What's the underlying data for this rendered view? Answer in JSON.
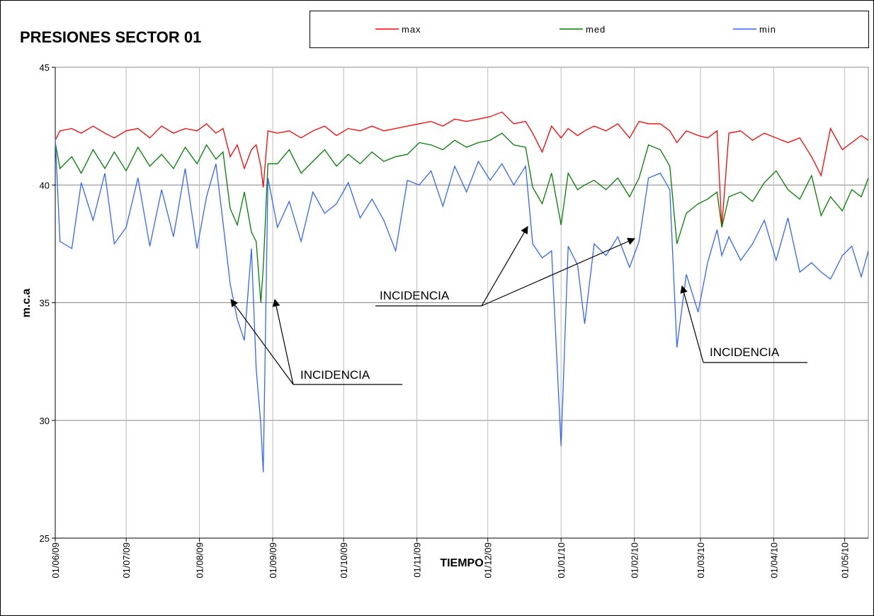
{
  "chart_data": {
    "type": "line",
    "title": "PRESIONES SECTOR 01",
    "x_label": "TIEMPO",
    "y_label": "m.c.a",
    "x": [
      "01/06/09",
      "03/06/09",
      "08/06/09",
      "12/06/09",
      "17/06/09",
      "22/06/09",
      "26/06/09",
      "01/07/09",
      "06/07/09",
      "11/07/09",
      "16/07/09",
      "21/07/09",
      "26/07/09",
      "31/07/09",
      "04/08/09",
      "08/08/09",
      "11/08/09",
      "14/08/09",
      "17/08/09",
      "20/08/09",
      "23/08/09",
      "25/08/09",
      "27/08/09",
      "28/08/09",
      "30/08/09",
      "03/09/09",
      "08/09/09",
      "13/09/09",
      "18/09/09",
      "23/09/09",
      "28/09/09",
      "03/10/09",
      "08/10/09",
      "13/10/09",
      "18/10/09",
      "23/10/09",
      "28/10/09",
      "02/11/09",
      "07/11/09",
      "12/11/09",
      "17/11/09",
      "22/11/09",
      "27/11/09",
      "02/12/09",
      "07/12/09",
      "12/12/09",
      "17/12/09",
      "20/12/09",
      "24/12/09",
      "28/12/09",
      "01/01/10",
      "04/01/10",
      "08/01/10",
      "11/01/10",
      "15/01/10",
      "20/01/10",
      "25/01/10",
      "30/01/10",
      "03/02/10",
      "07/02/10",
      "12/02/10",
      "16/02/10",
      "19/02/10",
      "23/02/10",
      "28/02/10",
      "04/03/10",
      "08/03/10",
      "10/03/10",
      "13/03/10",
      "18/03/10",
      "23/03/10",
      "28/03/10",
      "02/04/10",
      "07/04/10",
      "12/04/10",
      "17/04/10",
      "21/04/10",
      "25/04/10",
      "30/04/10",
      "04/05/10",
      "08/05/10",
      "11/05/10"
    ],
    "series": [
      {
        "name": "max",
        "color": "#ff0000",
        "values": [
          41.9,
          42.3,
          42.4,
          42.2,
          42.5,
          42.2,
          42.0,
          42.3,
          42.4,
          42.0,
          42.5,
          42.2,
          42.4,
          42.3,
          42.6,
          42.2,
          42.4,
          41.2,
          41.7,
          40.7,
          41.5,
          41.7,
          40.8,
          39.9,
          42.3,
          42.2,
          42.3,
          42.0,
          42.3,
          42.5,
          42.1,
          42.4,
          42.3,
          42.5,
          42.3,
          42.4,
          42.5,
          42.6,
          42.7,
          42.5,
          42.8,
          42.7,
          42.8,
          42.9,
          43.1,
          42.6,
          42.7,
          42.2,
          41.4,
          42.5,
          42.0,
          42.4,
          42.1,
          42.3,
          42.5,
          42.3,
          42.6,
          42.0,
          42.7,
          42.6,
          42.6,
          42.3,
          41.8,
          42.3,
          42.1,
          42.0,
          42.3,
          38.2,
          42.2,
          42.3,
          41.9,
          42.2,
          42.0,
          41.8,
          42.0,
          41.2,
          40.4,
          42.4,
          41.5,
          41.8,
          42.1,
          41.9
        ]
      },
      {
        "name": "med",
        "color": "#008000",
        "values": [
          41.8,
          40.7,
          41.2,
          40.5,
          41.5,
          40.7,
          41.4,
          40.6,
          41.6,
          40.8,
          41.3,
          40.7,
          41.6,
          40.9,
          41.7,
          41.1,
          41.4,
          39.0,
          38.3,
          39.7,
          38.0,
          37.6,
          35.0,
          36.5,
          40.9,
          40.9,
          41.5,
          40.5,
          41.0,
          41.5,
          40.8,
          41.3,
          40.9,
          41.4,
          41.0,
          41.2,
          41.3,
          41.8,
          41.7,
          41.5,
          41.9,
          41.6,
          41.8,
          41.9,
          42.2,
          41.7,
          41.6,
          39.9,
          39.2,
          40.5,
          38.3,
          40.5,
          39.8,
          40.0,
          40.2,
          39.8,
          40.3,
          39.5,
          40.3,
          41.7,
          41.5,
          40.8,
          37.5,
          38.8,
          39.2,
          39.4,
          39.7,
          38.2,
          39.5,
          39.7,
          39.3,
          40.1,
          40.6,
          39.8,
          39.4,
          40.4,
          38.7,
          39.5,
          38.9,
          39.8,
          39.5,
          40.3
        ]
      },
      {
        "name": "min",
        "color": "#3366ff",
        "values": [
          42.0,
          37.6,
          37.3,
          40.1,
          38.5,
          40.5,
          37.5,
          38.2,
          40.3,
          37.4,
          39.8,
          37.8,
          40.7,
          37.3,
          39.5,
          40.9,
          38.4,
          35.8,
          34.3,
          33.4,
          37.3,
          32.2,
          29.8,
          27.8,
          40.3,
          38.2,
          39.3,
          37.6,
          39.7,
          38.8,
          39.2,
          40.1,
          38.6,
          39.4,
          38.5,
          37.2,
          40.2,
          40.0,
          40.6,
          39.1,
          40.8,
          39.7,
          41.0,
          40.2,
          40.9,
          40.0,
          40.8,
          37.5,
          36.9,
          37.2,
          28.9,
          37.4,
          36.6,
          34.1,
          37.5,
          37.0,
          37.8,
          36.5,
          37.6,
          40.3,
          40.5,
          39.8,
          33.1,
          36.2,
          34.6,
          36.7,
          38.1,
          37.0,
          37.8,
          36.8,
          37.5,
          38.5,
          36.8,
          38.6,
          36.3,
          36.7,
          36.3,
          36.0,
          37.0,
          37.4,
          36.1,
          37.2
        ]
      }
    ],
    "xlim": [
      "01/06/09",
      "11/05/10"
    ],
    "xticks": [
      "01/06/09",
      "01/07/09",
      "01/08/09",
      "01/09/09",
      "01/10/09",
      "01/11/09",
      "01/12/09",
      "01/01/10",
      "01/02/10",
      "01/03/10",
      "01/04/10",
      "01/05/10"
    ],
    "ylim": [
      25,
      45
    ],
    "yticks": [
      25,
      30,
      35,
      40,
      45
    ],
    "grid": true,
    "legend_position": "top",
    "annotations": [
      "INCIDENCIA",
      "INCIDENCIA",
      "INCIDENCIA"
    ]
  }
}
